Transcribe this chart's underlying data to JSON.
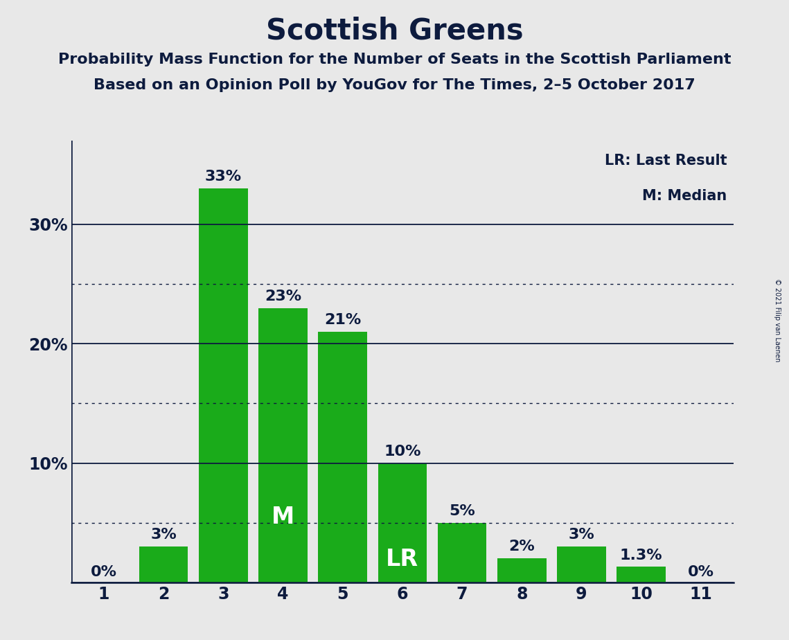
{
  "title": "Scottish Greens",
  "subtitle1": "Probability Mass Function for the Number of Seats in the Scottish Parliament",
  "subtitle2": "Based on an Opinion Poll by YouGov for The Times, 2–5 October 2017",
  "copyright": "© 2021 Filip van Laenen",
  "categories": [
    1,
    2,
    3,
    4,
    5,
    6,
    7,
    8,
    9,
    10,
    11
  ],
  "values": [
    0,
    3,
    33,
    23,
    21,
    10,
    5,
    2,
    3,
    1.3,
    0
  ],
  "labels": [
    "0%",
    "3%",
    "33%",
    "23%",
    "21%",
    "10%",
    "5%",
    "2%",
    "3%",
    "1.3%",
    "0%"
  ],
  "bar_color": "#1aab1a",
  "background_color": "#e8e8e8",
  "ylim": [
    0,
    37
  ],
  "solid_gridlines": [
    10,
    20,
    30
  ],
  "dotted_gridlines": [
    5,
    15,
    25
  ],
  "ytick_values": [
    10,
    20,
    30
  ],
  "ytick_labels": [
    "10%",
    "20%",
    "30%"
  ],
  "median_bar": 4,
  "lr_bar": 6,
  "legend_lr": "LR: Last Result",
  "legend_m": "M: Median",
  "title_fontsize": 30,
  "subtitle_fontsize": 16,
  "label_fontsize": 16,
  "tick_fontsize": 17,
  "text_color": "#0d1b3e",
  "bar_width": 0.82
}
